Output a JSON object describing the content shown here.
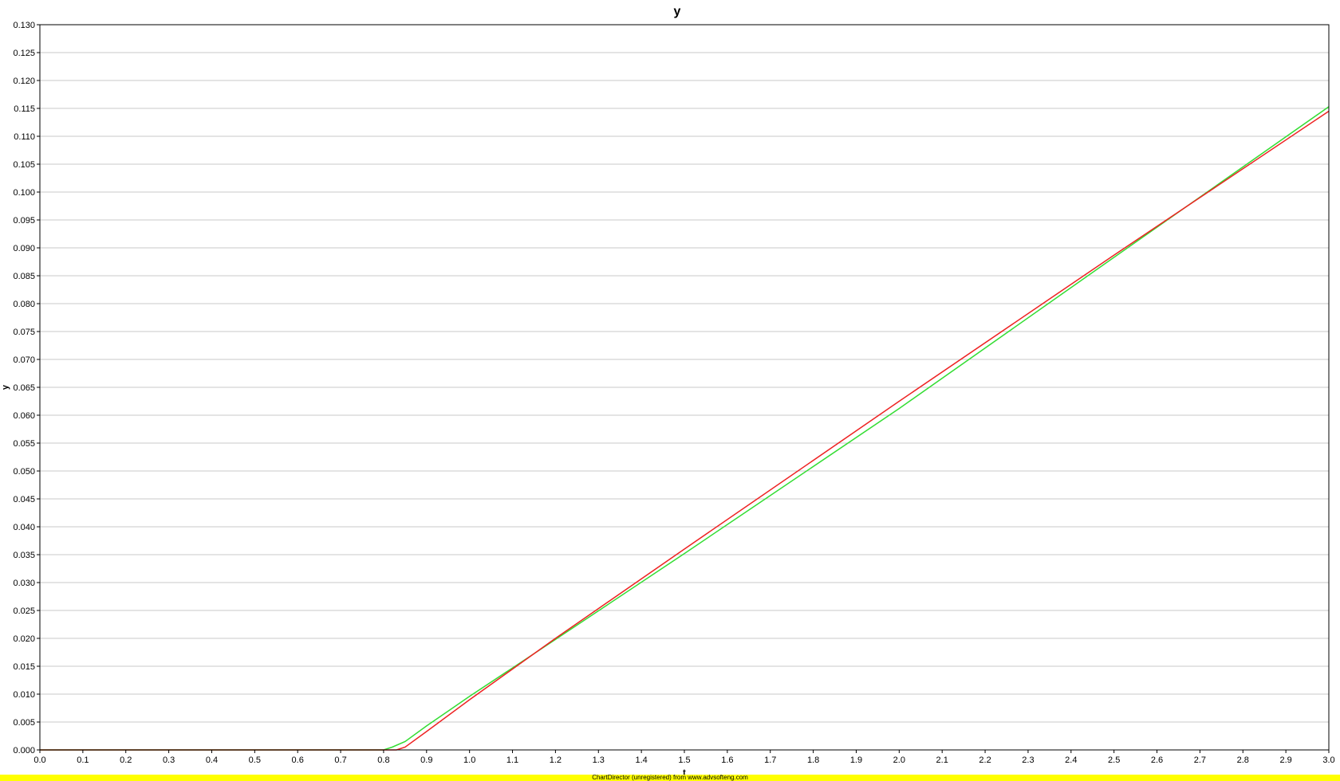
{
  "chart_data": {
    "type": "line",
    "title": "y",
    "xlabel": "t",
    "ylabel": "y",
    "xlim": [
      0.0,
      3.0
    ],
    "ylim": [
      0.0,
      0.13
    ],
    "x_ticks": [
      "0.0",
      "0.1",
      "0.2",
      "0.3",
      "0.4",
      "0.5",
      "0.6",
      "0.7",
      "0.8",
      "0.9",
      "1.0",
      "1.1",
      "1.2",
      "1.3",
      "1.4",
      "1.5",
      "1.6",
      "1.7",
      "1.8",
      "1.9",
      "2.0",
      "2.1",
      "2.2",
      "2.3",
      "2.4",
      "2.5",
      "2.6",
      "2.7",
      "2.8",
      "2.9",
      "3.0"
    ],
    "y_ticks": [
      "0.000",
      "0.005",
      "0.010",
      "0.015",
      "0.020",
      "0.025",
      "0.030",
      "0.035",
      "0.040",
      "0.045",
      "0.050",
      "0.055",
      "0.060",
      "0.065",
      "0.070",
      "0.075",
      "0.080",
      "0.085",
      "0.090",
      "0.095",
      "0.100",
      "0.105",
      "0.110",
      "0.115",
      "0.120",
      "0.125",
      "0.130"
    ],
    "grid": true,
    "legend": "none",
    "series": [
      {
        "color": "#33dd33",
        "x": [
          0.0,
          0.8,
          0.82,
          0.85,
          0.9,
          1.0,
          1.2,
          1.5,
          2.0,
          2.5,
          3.0
        ],
        "y": [
          0.0,
          0.0,
          0.0005,
          0.0015,
          0.0043,
          0.0096,
          0.0198,
          0.0352,
          0.0612,
          0.0883,
          0.1153
        ]
      },
      {
        "color": "#ee2222",
        "x": [
          0.0,
          0.83,
          0.85,
          0.9,
          1.0,
          1.2,
          1.5,
          2.0,
          2.5,
          3.0
        ],
        "y": [
          0.0,
          0.0,
          0.0005,
          0.0033,
          0.009,
          0.02,
          0.036,
          0.0625,
          0.0887,
          0.1145
        ]
      }
    ]
  },
  "footer": {
    "watermark": "ChartDirector (unregistered) from www.advsofteng.com"
  }
}
